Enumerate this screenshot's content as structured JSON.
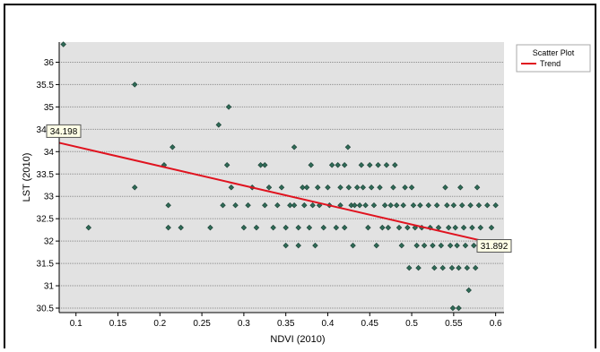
{
  "colors": {
    "plot_background": "#e2e2e2",
    "point_fill": "#2f6b57",
    "point_stroke": "#1a3d32",
    "trend_line": "#e0131f",
    "gridline": "#8c8c8c",
    "callout_fill": "#ffffe6"
  },
  "chart_data": {
    "type": "scatter",
    "xlabel": "NDVI (2010)",
    "ylabel": "LST (2010)",
    "xlim": [
      0.08,
      0.61
    ],
    "ylim": [
      30.4,
      36.45
    ],
    "xticks": [
      0.1,
      0.15,
      0.2,
      0.25,
      0.3,
      0.35,
      0.4,
      0.45,
      0.5,
      0.55,
      0.6
    ],
    "xtick_labels": [
      "0.1",
      "0.15",
      "0.2",
      "0.25",
      "0.3",
      "0.35",
      "0.4",
      "0.45",
      "0.5",
      "0.55",
      "0.6"
    ],
    "yticks": [
      30.5,
      31,
      31.5,
      32,
      32.5,
      33,
      33.5,
      34,
      34.5,
      35,
      35.5,
      36
    ],
    "ytick_labels": [
      "30.5",
      "31",
      "31.5",
      "32",
      "32.5",
      "33",
      "33.5",
      "34",
      "34.5",
      "35",
      "35.5",
      "36"
    ],
    "grid": "horizontal",
    "legend_placement": "right-top",
    "legend": [
      {
        "label": "Scatter Plot",
        "kind": "none"
      },
      {
        "label": "Trend",
        "kind": "line"
      }
    ],
    "series": [
      {
        "name": "Scatter Plot",
        "points": [
          [
            0.085,
            36.4
          ],
          [
            0.115,
            32.3
          ],
          [
            0.17,
            35.5
          ],
          [
            0.17,
            33.2
          ],
          [
            0.205,
            33.7
          ],
          [
            0.21,
            32.8
          ],
          [
            0.215,
            34.1
          ],
          [
            0.21,
            32.3
          ],
          [
            0.225,
            32.3
          ],
          [
            0.26,
            32.3
          ],
          [
            0.27,
            34.6
          ],
          [
            0.275,
            32.8
          ],
          [
            0.28,
            33.7
          ],
          [
            0.282,
            35.0
          ],
          [
            0.285,
            33.2
          ],
          [
            0.29,
            32.8
          ],
          [
            0.3,
            32.3
          ],
          [
            0.305,
            32.8
          ],
          [
            0.31,
            33.2
          ],
          [
            0.315,
            32.3
          ],
          [
            0.32,
            33.7
          ],
          [
            0.325,
            33.7
          ],
          [
            0.325,
            32.8
          ],
          [
            0.33,
            33.2
          ],
          [
            0.335,
            32.3
          ],
          [
            0.34,
            32.8
          ],
          [
            0.345,
            33.2
          ],
          [
            0.35,
            32.3
          ],
          [
            0.35,
            31.9
          ],
          [
            0.355,
            32.8
          ],
          [
            0.36,
            34.1
          ],
          [
            0.36,
            32.8
          ],
          [
            0.365,
            31.9
          ],
          [
            0.365,
            32.3
          ],
          [
            0.37,
            33.2
          ],
          [
            0.372,
            32.8
          ],
          [
            0.375,
            33.2
          ],
          [
            0.378,
            32.3
          ],
          [
            0.38,
            33.7
          ],
          [
            0.382,
            32.8
          ],
          [
            0.385,
            31.9
          ],
          [
            0.388,
            33.2
          ],
          [
            0.39,
            32.8
          ],
          [
            0.395,
            32.3
          ],
          [
            0.4,
            33.2
          ],
          [
            0.402,
            32.8
          ],
          [
            0.405,
            33.7
          ],
          [
            0.41,
            32.3
          ],
          [
            0.412,
            33.7
          ],
          [
            0.415,
            33.2
          ],
          [
            0.415,
            32.8
          ],
          [
            0.42,
            33.7
          ],
          [
            0.42,
            32.3
          ],
          [
            0.424,
            34.1
          ],
          [
            0.425,
            33.2
          ],
          [
            0.428,
            32.8
          ],
          [
            0.43,
            31.9
          ],
          [
            0.432,
            32.8
          ],
          [
            0.435,
            33.2
          ],
          [
            0.438,
            32.8
          ],
          [
            0.44,
            33.7
          ],
          [
            0.442,
            33.2
          ],
          [
            0.445,
            32.8
          ],
          [
            0.448,
            32.3
          ],
          [
            0.45,
            33.7
          ],
          [
            0.452,
            33.2
          ],
          [
            0.455,
            32.8
          ],
          [
            0.458,
            31.9
          ],
          [
            0.46,
            33.7
          ],
          [
            0.462,
            33.2
          ],
          [
            0.465,
            32.3
          ],
          [
            0.468,
            32.8
          ],
          [
            0.47,
            33.7
          ],
          [
            0.472,
            32.3
          ],
          [
            0.475,
            32.8
          ],
          [
            0.478,
            33.2
          ],
          [
            0.48,
            33.7
          ],
          [
            0.482,
            32.8
          ],
          [
            0.485,
            32.3
          ],
          [
            0.488,
            31.9
          ],
          [
            0.49,
            32.8
          ],
          [
            0.492,
            33.2
          ],
          [
            0.495,
            32.3
          ],
          [
            0.497,
            31.4
          ],
          [
            0.5,
            33.2
          ],
          [
            0.502,
            32.8
          ],
          [
            0.504,
            32.3
          ],
          [
            0.506,
            31.9
          ],
          [
            0.508,
            31.4
          ],
          [
            0.51,
            32.8
          ],
          [
            0.512,
            32.3
          ],
          [
            0.515,
            31.9
          ],
          [
            0.52,
            32.8
          ],
          [
            0.522,
            32.3
          ],
          [
            0.525,
            31.9
          ],
          [
            0.527,
            31.4
          ],
          [
            0.53,
            32.8
          ],
          [
            0.532,
            32.3
          ],
          [
            0.535,
            31.9
          ],
          [
            0.537,
            31.4
          ],
          [
            0.54,
            33.2
          ],
          [
            0.542,
            32.8
          ],
          [
            0.544,
            32.3
          ],
          [
            0.546,
            31.9
          ],
          [
            0.548,
            31.4
          ],
          [
            0.549,
            30.5
          ],
          [
            0.55,
            32.8
          ],
          [
            0.552,
            32.3
          ],
          [
            0.554,
            31.9
          ],
          [
            0.556,
            31.4
          ],
          [
            0.556,
            30.5
          ],
          [
            0.558,
            33.2
          ],
          [
            0.56,
            32.8
          ],
          [
            0.562,
            32.3
          ],
          [
            0.564,
            31.9
          ],
          [
            0.566,
            31.4
          ],
          [
            0.568,
            30.9
          ],
          [
            0.57,
            32.8
          ],
          [
            0.572,
            32.3
          ],
          [
            0.574,
            31.9
          ],
          [
            0.576,
            31.4
          ],
          [
            0.578,
            33.2
          ],
          [
            0.58,
            32.8
          ],
          [
            0.582,
            32.3
          ],
          [
            0.584,
            31.9
          ],
          [
            0.59,
            32.8
          ],
          [
            0.595,
            32.3
          ],
          [
            0.6,
            32.8
          ],
          [
            0.602,
            31.9
          ]
        ]
      },
      {
        "name": "Trend",
        "type": "line",
        "x": [
          0.08,
          0.61
        ],
        "y": [
          34.198,
          31.892
        ]
      }
    ],
    "annotations": [
      {
        "text": "34.198",
        "x": 0.08,
        "y": 34.198
      },
      {
        "text": "31.892",
        "x": 0.61,
        "y": 31.892
      }
    ]
  }
}
